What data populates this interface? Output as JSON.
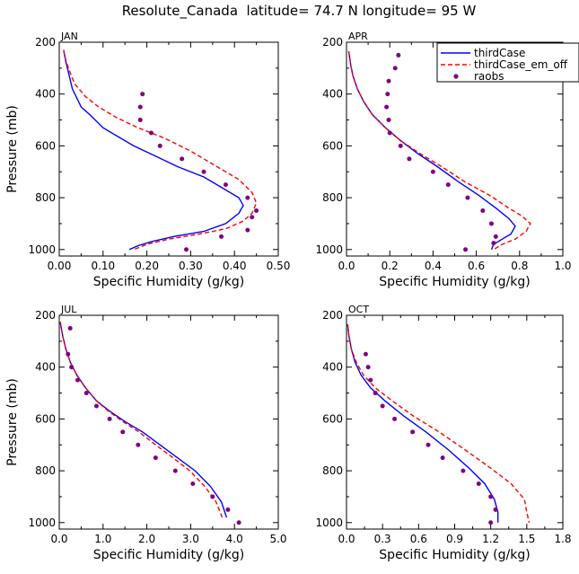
{
  "figure": {
    "title": "Resolute_Canada  latitude= 74.7 N longitude= 95 W"
  },
  "legend": {
    "placement": "top-right, overlapping APR panel",
    "entries": [
      {
        "label": "thirdCase",
        "style": "solid-line",
        "color": "#0000ff"
      },
      {
        "label": "thirdCase_em_off",
        "style": "dashed-line",
        "color": "#ff0000"
      },
      {
        "label": "raobs",
        "style": "dot",
        "color": "#800080"
      }
    ]
  },
  "colors": {
    "thirdCase": "#0000ff",
    "thirdCase_em_off": "#ff0000",
    "raobs": "#800080",
    "axes": "#000000"
  },
  "chart_data": [
    {
      "type": "line",
      "panel_label": "JAN",
      "xlabel": "Specific Humidity (g/kg)",
      "ylabel": "Pressure (mb)",
      "xlim": [
        0,
        0.5
      ],
      "ylim": [
        1025,
        200
      ],
      "y_inverted": true,
      "xticks": [
        "0.00",
        "0.10",
        "0.20",
        "0.30",
        "0.40",
        "0.50"
      ],
      "yticks": [
        "200",
        "400",
        "600",
        "800",
        "1000"
      ],
      "xtick_values": [
        0,
        0.1,
        0.2,
        0.3,
        0.4,
        0.5
      ],
      "ytick_values": [
        200,
        400,
        600,
        800,
        1000
      ],
      "grid": false,
      "series": [
        {
          "name": "thirdCase",
          "kind": "line",
          "x": [
            0.01,
            0.012,
            0.015,
            0.02,
            0.03,
            0.05,
            0.07,
            0.1,
            0.13,
            0.17,
            0.22,
            0.27,
            0.33,
            0.38,
            0.41,
            0.42,
            0.41,
            0.38,
            0.33,
            0.26,
            0.21,
            0.18,
            0.16
          ],
          "y": [
            230,
            250,
            275,
            310,
            380,
            450,
            480,
            530,
            560,
            600,
            640,
            680,
            720,
            770,
            800,
            830,
            860,
            900,
            930,
            950,
            970,
            985,
            1000
          ]
        },
        {
          "name": "thirdCase_em_off",
          "kind": "line",
          "x": [
            0.01,
            0.012,
            0.016,
            0.022,
            0.035,
            0.06,
            0.09,
            0.13,
            0.18,
            0.24,
            0.3,
            0.36,
            0.41,
            0.44,
            0.45,
            0.44,
            0.42,
            0.38,
            0.32,
            0.25,
            0.2,
            0.17
          ],
          "y": [
            230,
            250,
            275,
            305,
            360,
            410,
            450,
            490,
            530,
            570,
            620,
            680,
            730,
            780,
            820,
            860,
            890,
            920,
            940,
            960,
            980,
            1000
          ]
        },
        {
          "name": "raobs",
          "kind": "scatter",
          "x": [
            0.19,
            0.185,
            0.185,
            0.21,
            0.23,
            0.28,
            0.33,
            0.38,
            0.43,
            0.45,
            0.44,
            0.43,
            0.37,
            0.29
          ],
          "y": [
            400,
            450,
            500,
            550,
            600,
            650,
            700,
            750,
            800,
            850,
            875,
            925,
            950,
            1000
          ]
        }
      ]
    },
    {
      "type": "line",
      "panel_label": "APR",
      "xlabel": "Specific Humidity (g/kg)",
      "ylabel": "",
      "xlim": [
        0,
        1.0
      ],
      "ylim": [
        1025,
        200
      ],
      "y_inverted": true,
      "xticks": [
        "0.0",
        "0.2",
        "0.4",
        "0.6",
        "0.8",
        "1.0"
      ],
      "yticks": [
        "200",
        "400",
        "600",
        "800",
        "1000"
      ],
      "xtick_values": [
        0,
        0.2,
        0.4,
        0.6,
        0.8,
        1.0
      ],
      "ytick_values": [
        200,
        400,
        600,
        800,
        1000
      ],
      "grid": false,
      "series": [
        {
          "name": "thirdCase",
          "kind": "line",
          "x": [
            0.01,
            0.015,
            0.02,
            0.03,
            0.05,
            0.08,
            0.12,
            0.18,
            0.25,
            0.33,
            0.42,
            0.52,
            0.61,
            0.69,
            0.75,
            0.78,
            0.76,
            0.72,
            0.68,
            0.67
          ],
          "y": [
            235,
            260,
            290,
            330,
            380,
            430,
            480,
            530,
            580,
            630,
            680,
            740,
            790,
            840,
            880,
            910,
            940,
            960,
            980,
            1000
          ]
        },
        {
          "name": "thirdCase_em_off",
          "kind": "line",
          "x": [
            0.01,
            0.015,
            0.02,
            0.03,
            0.05,
            0.08,
            0.12,
            0.18,
            0.25,
            0.34,
            0.44,
            0.55,
            0.66,
            0.75,
            0.81,
            0.85,
            0.83,
            0.78,
            0.72,
            0.68
          ],
          "y": [
            235,
            260,
            290,
            330,
            380,
            430,
            480,
            530,
            580,
            630,
            680,
            740,
            790,
            840,
            870,
            900,
            930,
            960,
            980,
            1000
          ]
        },
        {
          "name": "raobs",
          "kind": "scatter",
          "x": [
            0.24,
            0.225,
            0.195,
            0.19,
            0.185,
            0.195,
            0.2,
            0.25,
            0.29,
            0.4,
            0.47,
            0.56,
            0.63,
            0.67,
            0.69,
            0.68,
            0.55
          ],
          "y": [
            250,
            300,
            350,
            400,
            450,
            500,
            550,
            600,
            650,
            700,
            750,
            800,
            850,
            900,
            950,
            975,
            1000
          ]
        }
      ]
    },
    {
      "type": "line",
      "panel_label": "JUL",
      "xlabel": "Specific Humidity (g/kg)",
      "ylabel": "Pressure (mb)",
      "xlim": [
        0,
        5.0
      ],
      "ylim": [
        1025,
        200
      ],
      "y_inverted": true,
      "xticks": [
        "0.0",
        "1.0",
        "2.0",
        "3.0",
        "4.0",
        "5.0"
      ],
      "yticks": [
        "200",
        "400",
        "600",
        "800",
        "1000"
      ],
      "xtick_values": [
        0,
        1,
        2,
        3,
        4,
        5
      ],
      "ytick_values": [
        200,
        400,
        600,
        800,
        1000
      ],
      "grid": false,
      "series": [
        {
          "name": "thirdCase",
          "kind": "line",
          "x": [
            0.02,
            0.08,
            0.15,
            0.25,
            0.4,
            0.6,
            0.85,
            1.15,
            1.5,
            1.9,
            2.3,
            2.7,
            3.1,
            3.45,
            3.7,
            3.82
          ],
          "y": [
            225,
            280,
            330,
            380,
            430,
            480,
            530,
            570,
            610,
            650,
            700,
            750,
            800,
            860,
            920,
            980
          ]
        },
        {
          "name": "thirdCase_em_off",
          "kind": "line",
          "x": [
            0.02,
            0.08,
            0.15,
            0.25,
            0.4,
            0.6,
            0.85,
            1.12,
            1.45,
            1.82,
            2.2,
            2.6,
            2.98,
            3.32,
            3.58,
            3.72
          ],
          "y": [
            225,
            280,
            330,
            380,
            430,
            480,
            530,
            570,
            610,
            650,
            700,
            750,
            800,
            860,
            920,
            980
          ]
        },
        {
          "name": "raobs",
          "kind": "scatter",
          "x": [
            0.25,
            0.2,
            0.28,
            0.42,
            0.62,
            0.85,
            1.15,
            1.45,
            1.8,
            2.2,
            2.65,
            3.05,
            3.5,
            3.85,
            4.1
          ],
          "y": [
            250,
            350,
            400,
            450,
            500,
            550,
            600,
            650,
            700,
            750,
            800,
            850,
            900,
            950,
            1000
          ]
        }
      ]
    },
    {
      "type": "line",
      "panel_label": "OCT",
      "xlabel": "Specific Humidity (g/kg)",
      "ylabel": "",
      "xlim": [
        0,
        1.8
      ],
      "ylim": [
        1025,
        200
      ],
      "y_inverted": true,
      "xticks": [
        "0.0",
        "0.3",
        "0.6",
        "0.9",
        "1.2",
        "1.5",
        "1.8"
      ],
      "yticks": [
        "200",
        "400",
        "600",
        "800",
        "1000"
      ],
      "xtick_values": [
        0,
        0.3,
        0.6,
        0.9,
        1.2,
        1.5,
        1.8
      ],
      "ytick_values": [
        200,
        400,
        600,
        800,
        1000
      ],
      "grid": false,
      "series": [
        {
          "name": "thirdCase",
          "kind": "line",
          "x": [
            0.01,
            0.02,
            0.04,
            0.07,
            0.12,
            0.2,
            0.32,
            0.48,
            0.66,
            0.85,
            1.02,
            1.15,
            1.23,
            1.26,
            1.26
          ],
          "y": [
            235,
            280,
            330,
            380,
            430,
            480,
            530,
            590,
            650,
            720,
            790,
            850,
            910,
            960,
            1000
          ]
        },
        {
          "name": "thirdCase_em_off",
          "kind": "line",
          "x": [
            0.01,
            0.02,
            0.04,
            0.08,
            0.14,
            0.24,
            0.38,
            0.56,
            0.77,
            0.99,
            1.2,
            1.37,
            1.48,
            1.5,
            1.52
          ],
          "y": [
            235,
            280,
            330,
            380,
            430,
            480,
            530,
            590,
            650,
            720,
            790,
            850,
            910,
            960,
            1000
          ]
        },
        {
          "name": "raobs",
          "kind": "scatter",
          "x": [
            0.16,
            0.18,
            0.2,
            0.24,
            0.3,
            0.4,
            0.55,
            0.68,
            0.8,
            0.97,
            1.1,
            1.2,
            1.24,
            1.2
          ],
          "y": [
            350,
            400,
            450,
            500,
            550,
            600,
            650,
            700,
            750,
            800,
            850,
            900,
            950,
            1000
          ]
        }
      ]
    }
  ]
}
